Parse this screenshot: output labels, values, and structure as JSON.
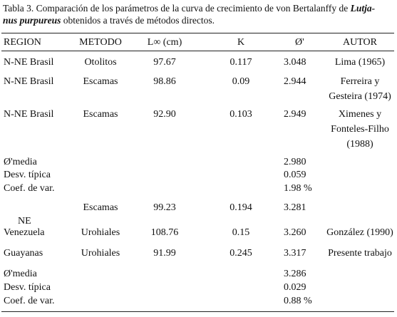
{
  "caption": {
    "line1": [
      "Tabla 3. Comparación de los parámetros de la curva de crecimiento de von Bertalanffy de ",
      "Lutja-"
    ],
    "line2": [
      "nus purpureus",
      " obtenidos a través de métodos directos."
    ]
  },
  "table": {
    "header": [
      "REGION",
      "METODO",
      "L∞ (cm)",
      "K",
      "Ø'",
      "AUTOR"
    ],
    "rows": [
      [
        "N-NE Brasil",
        "Otolitos",
        "97.67",
        "0.117",
        "3.048",
        "Lima (1965)"
      ],
      [
        "N-NE Brasil",
        "Escamas",
        "98.86",
        "0.09",
        "2.944",
        [
          "Ferreira y",
          "Gesteira (1974)"
        ]
      ],
      [
        "N-NE Brasil",
        "Escamas",
        "92.90",
        "0.103",
        "2.949",
        [
          "Ximenes y",
          "Fonteles-Filho",
          "(1988)"
        ]
      ],
      [
        "Ø'media",
        null,
        null,
        null,
        "2.980",
        null
      ],
      [
        "Desv. típica",
        null,
        null,
        null,
        "0.059",
        null
      ],
      [
        "Coef. de var.",
        null,
        null,
        null,
        "1.98 %",
        null
      ],
      [
        null,
        "Escamas",
        "99.23",
        "0.194",
        "3.281",
        null
      ],
      [
        [
          "NE",
          "Venezuela"
        ],
        "Urohiales",
        "108.76",
        "0.15",
        "3.260",
        "González (1990)"
      ],
      [
        "Guayanas",
        "Urohiales",
        "91.99",
        "0.245",
        "3.317",
        "Presente trabajo"
      ],
      [
        "Ø'media",
        null,
        null,
        null,
        "3.286",
        null
      ],
      [
        "Desv. típica",
        null,
        null,
        null,
        "0.029",
        null
      ],
      [
        "Coef. de var.",
        null,
        null,
        null,
        "0.88 %",
        null
      ]
    ]
  }
}
